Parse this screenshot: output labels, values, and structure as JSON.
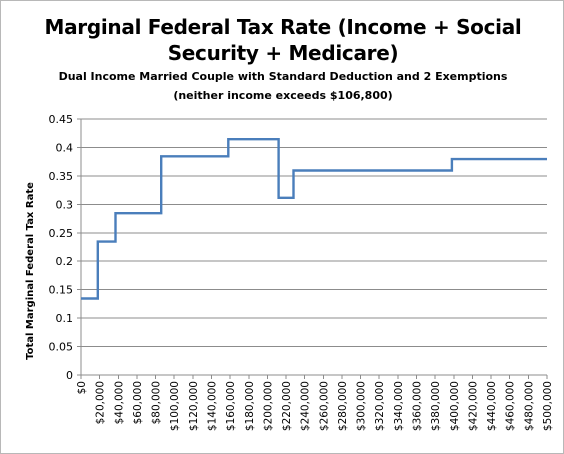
{
  "chart_data": {
    "type": "line",
    "step": true,
    "title_line1": "Marginal Federal Tax Rate (Income + Social",
    "title_line2": "Security + Medicare)",
    "subtitle_line1": "Dual Income Married Couple with Standard Deduction and 2 Exemptions",
    "subtitle_line2": "(neither income exceeds $106,800)",
    "xlabel": "",
    "ylabel": "Total Marginal Federal Tax Rate",
    "xlim": [
      0,
      500000
    ],
    "ylim": [
      0,
      0.45
    ],
    "grid": true,
    "legend": "none",
    "line_color": "#4a7ebb",
    "x_ticks": [
      0,
      20000,
      40000,
      60000,
      80000,
      100000,
      120000,
      140000,
      160000,
      180000,
      200000,
      220000,
      240000,
      260000,
      280000,
      300000,
      320000,
      340000,
      360000,
      380000,
      400000,
      420000,
      440000,
      460000,
      480000,
      500000
    ],
    "x_tick_labels": [
      "$0",
      "$20,000",
      "$40,000",
      "$60,000",
      "$80,000",
      "$100,000",
      "$120,000",
      "$140,000",
      "$160,000",
      "$180,000",
      "$200,000",
      "$220,000",
      "$240,000",
      "$260,000",
      "$280,000",
      "$300,000",
      "$320,000",
      "$340,000",
      "$360,000",
      "$380,000",
      "$400,000",
      "$420,000",
      "$440,000",
      "$460,000",
      "$480,000",
      "$500,000"
    ],
    "y_ticks": [
      0,
      0.05,
      0.1,
      0.15,
      0.2,
      0.25,
      0.3,
      0.35,
      0.4,
      0.45
    ],
    "y_tick_labels": [
      "0",
      "0.05",
      "0.1",
      "0.15",
      "0.2",
      "0.25",
      "0.3",
      "0.35",
      "0.4",
      "0.45"
    ],
    "series": [
      {
        "x": [
          0,
          18000,
          18000,
          37000,
          37000,
          86000,
          86000,
          158000,
          158000,
          212000,
          212000,
          228000,
          228000,
          398000,
          398000,
          500000
        ],
        "y": [
          0.1345,
          0.1345,
          0.2345,
          0.2345,
          0.2845,
          0.2845,
          0.3845,
          0.3845,
          0.4145,
          0.4145,
          0.3115,
          0.3115,
          0.3595,
          0.3595,
          0.3795,
          0.3795
        ]
      }
    ]
  }
}
